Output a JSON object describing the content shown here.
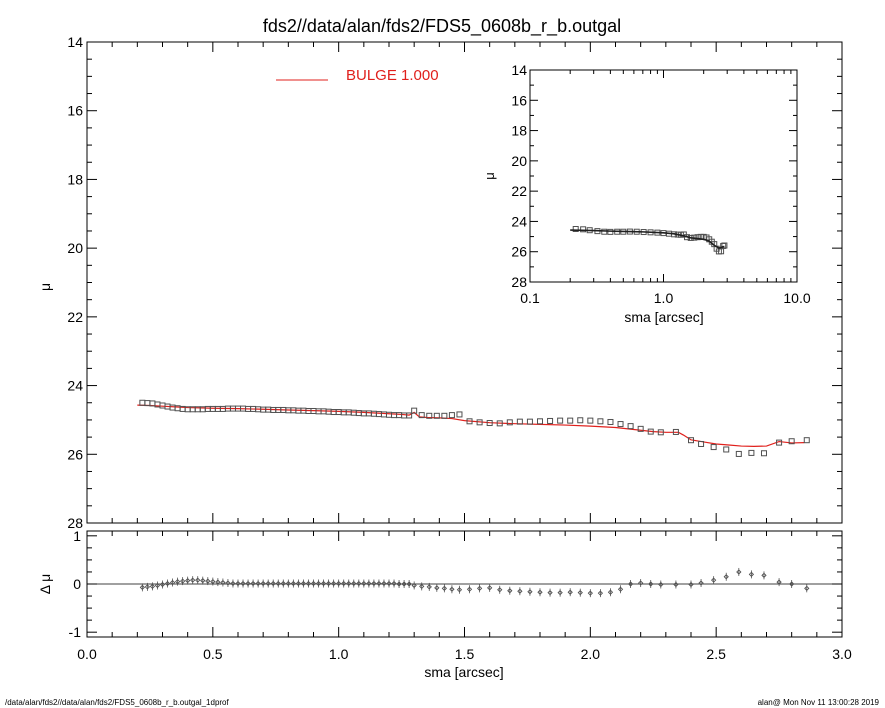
{
  "title": "fds2//data/alan/fds2/FDS5_0608b_r_b.outgal",
  "footer": {
    "left": "/data/alan/fds2//data/alan/fds2/FDS5_0608b_r_b.outgal_1dprof",
    "right": "alan@  Mon Nov 11 13:00:28 2019"
  },
  "colors": {
    "model": "#e0201c",
    "data": "#505050",
    "axes": "#000000"
  },
  "chart_data": [
    {
      "id": "main",
      "type": "scatter",
      "title": "fds2//data/alan/fds2/FDS5_0608b_r_b.outgal",
      "xlabel": "sma [arcsec]",
      "ylabel": "μ",
      "xlim": [
        0.0,
        3.0
      ],
      "ylim": [
        28,
        14
      ],
      "y_inverted": true,
      "xticks": [
        "0.0",
        "0.5",
        "1.0",
        "1.5",
        "2.0",
        "2.5",
        "3.0"
      ],
      "yticks": [
        "14",
        "16",
        "18",
        "20",
        "22",
        "24",
        "26",
        "28"
      ],
      "legend": {
        "label": "BULGE",
        "value": "1.000",
        "placement": "top"
      },
      "series": [
        {
          "kind": "points",
          "marker": "open-square",
          "x": [
            0.22,
            0.24,
            0.26,
            0.28,
            0.3,
            0.32,
            0.34,
            0.36,
            0.38,
            0.4,
            0.42,
            0.44,
            0.46,
            0.48,
            0.5,
            0.52,
            0.54,
            0.56,
            0.58,
            0.6,
            0.62,
            0.64,
            0.66,
            0.68,
            0.7,
            0.72,
            0.74,
            0.76,
            0.78,
            0.8,
            0.82,
            0.84,
            0.86,
            0.88,
            0.9,
            0.92,
            0.94,
            0.96,
            0.98,
            1.0,
            1.02,
            1.04,
            1.06,
            1.08,
            1.1,
            1.12,
            1.14,
            1.16,
            1.18,
            1.2,
            1.22,
            1.24,
            1.26,
            1.28,
            1.3,
            1.33,
            1.36,
            1.39,
            1.42,
            1.45,
            1.48,
            1.52,
            1.56,
            1.6,
            1.64,
            1.68,
            1.72,
            1.76,
            1.8,
            1.84,
            1.88,
            1.92,
            1.96,
            2.0,
            2.04,
            2.08,
            2.12,
            2.16,
            2.2,
            2.24,
            2.28,
            2.34,
            2.4,
            2.44,
            2.49,
            2.54,
            2.59,
            2.64,
            2.69,
            2.75,
            2.8,
            2.86
          ],
          "y": [
            24.5,
            24.51,
            24.52,
            24.55,
            24.58,
            24.61,
            24.64,
            24.66,
            24.68,
            24.69,
            24.69,
            24.69,
            24.69,
            24.68,
            24.68,
            24.68,
            24.68,
            24.67,
            24.67,
            24.67,
            24.67,
            24.68,
            24.68,
            24.69,
            24.7,
            24.7,
            24.71,
            24.71,
            24.71,
            24.72,
            24.72,
            24.73,
            24.73,
            24.74,
            24.74,
            24.75,
            24.75,
            24.76,
            24.77,
            24.77,
            24.78,
            24.78,
            24.79,
            24.8,
            24.81,
            24.81,
            24.82,
            24.83,
            24.84,
            24.85,
            24.86,
            24.86,
            24.87,
            24.87,
            24.73,
            24.86,
            24.88,
            24.88,
            24.88,
            24.86,
            24.84,
            25.04,
            25.07,
            25.09,
            25.1,
            25.07,
            25.05,
            25.05,
            25.04,
            25.03,
            25.02,
            25.02,
            25.01,
            25.02,
            25.04,
            25.06,
            25.12,
            25.18,
            25.26,
            25.34,
            25.36,
            25.35,
            25.59,
            25.7,
            25.79,
            25.86,
            25.99,
            25.96,
            25.97,
            25.66,
            25.62,
            25.59
          ]
        },
        {
          "kind": "line",
          "name": "BULGE",
          "x": [
            0.2,
            0.25,
            0.3,
            0.35,
            0.4,
            0.45,
            0.5,
            0.6,
            0.7,
            0.8,
            0.9,
            1.0,
            1.1,
            1.2,
            1.25,
            1.28,
            1.3,
            1.32,
            1.35,
            1.4,
            1.45,
            1.5,
            1.6,
            1.7,
            1.8,
            1.9,
            2.0,
            2.1,
            2.2,
            2.25,
            2.3,
            2.35,
            2.37,
            2.4,
            2.45,
            2.5,
            2.55,
            2.6,
            2.65,
            2.7,
            2.75,
            2.8,
            2.85
          ],
          "y": [
            24.57,
            24.58,
            24.6,
            24.62,
            24.64,
            24.65,
            24.66,
            24.67,
            24.69,
            24.71,
            24.73,
            24.75,
            24.78,
            24.82,
            24.84,
            24.86,
            24.78,
            24.91,
            24.93,
            24.94,
            24.96,
            25.02,
            25.08,
            25.11,
            25.13,
            25.15,
            25.18,
            25.22,
            25.3,
            25.34,
            25.36,
            25.36,
            25.44,
            25.58,
            25.64,
            25.7,
            25.73,
            25.76,
            25.77,
            25.76,
            25.63,
            25.67,
            25.66
          ]
        }
      ]
    },
    {
      "id": "residual",
      "type": "scatter",
      "xlabel": "sma [arcsec]",
      "ylabel": "Δ μ",
      "xlim": [
        0.0,
        3.0
      ],
      "ylim": [
        -1.1,
        1.1
      ],
      "yticks": [
        "1",
        "0",
        "-1"
      ],
      "zero_line": true,
      "series": [
        {
          "kind": "points",
          "marker": "diamond-errorbar",
          "x": [
            0.22,
            0.24,
            0.26,
            0.28,
            0.3,
            0.32,
            0.34,
            0.36,
            0.38,
            0.4,
            0.42,
            0.44,
            0.46,
            0.48,
            0.5,
            0.52,
            0.54,
            0.56,
            0.58,
            0.6,
            0.62,
            0.64,
            0.66,
            0.68,
            0.7,
            0.72,
            0.74,
            0.76,
            0.78,
            0.8,
            0.82,
            0.84,
            0.86,
            0.88,
            0.9,
            0.92,
            0.94,
            0.96,
            0.98,
            1.0,
            1.02,
            1.04,
            1.06,
            1.08,
            1.1,
            1.12,
            1.14,
            1.16,
            1.18,
            1.2,
            1.22,
            1.24,
            1.26,
            1.28,
            1.3,
            1.33,
            1.36,
            1.39,
            1.42,
            1.45,
            1.48,
            1.52,
            1.56,
            1.6,
            1.64,
            1.68,
            1.72,
            1.76,
            1.8,
            1.84,
            1.88,
            1.92,
            1.96,
            2.0,
            2.04,
            2.08,
            2.12,
            2.16,
            2.2,
            2.24,
            2.28,
            2.34,
            2.4,
            2.44,
            2.49,
            2.54,
            2.59,
            2.64,
            2.69,
            2.75,
            2.8,
            2.86
          ],
          "y": [
            -0.07,
            -0.06,
            -0.05,
            -0.03,
            -0.01,
            0.01,
            0.03,
            0.05,
            0.06,
            0.07,
            0.08,
            0.08,
            0.07,
            0.06,
            0.05,
            0.04,
            0.03,
            0.02,
            0.01,
            0.01,
            0.01,
            0.01,
            0.01,
            0.01,
            0.01,
            0.01,
            0.01,
            0.01,
            0.01,
            0.01,
            0.01,
            0.01,
            0.01,
            0.01,
            0.01,
            0.01,
            0.01,
            0.01,
            0.01,
            0.01,
            0.01,
            0.01,
            0.01,
            0.01,
            0.01,
            0.01,
            0.01,
            0.01,
            0.01,
            0.01,
            0.01,
            0.0,
            0.0,
            0.0,
            -0.03,
            -0.05,
            -0.06,
            -0.08,
            -0.09,
            -0.11,
            -0.12,
            -0.11,
            -0.09,
            -0.08,
            -0.12,
            -0.14,
            -0.15,
            -0.16,
            -0.17,
            -0.18,
            -0.18,
            -0.17,
            -0.18,
            -0.19,
            -0.19,
            -0.17,
            -0.11,
            0.0,
            0.02,
            0.0,
            -0.01,
            -0.01,
            -0.01,
            0.02,
            0.08,
            0.15,
            0.25,
            0.2,
            0.18,
            0.04,
            0.0,
            -0.09
          ]
        }
      ]
    },
    {
      "id": "inset",
      "type": "scatter",
      "xlabel": "sma [arcsec]",
      "ylabel": "μ",
      "xscale": "log",
      "xlim": [
        0.1,
        10.0
      ],
      "ylim": [
        28,
        14
      ],
      "y_inverted": true,
      "xticks": [
        "0.1",
        "1.0",
        "10.0"
      ],
      "yticks": [
        "14",
        "16",
        "18",
        "20",
        "22",
        "24",
        "26",
        "28"
      ],
      "series": [
        {
          "kind": "points",
          "marker": "open-square",
          "x": [
            0.22,
            0.25,
            0.28,
            0.32,
            0.36,
            0.4,
            0.45,
            0.5,
            0.56,
            0.63,
            0.71,
            0.8,
            0.9,
            1.0,
            1.1,
            1.2,
            1.28,
            1.35,
            1.42,
            1.5,
            1.6,
            1.7,
            1.8,
            1.9,
            2.0,
            2.1,
            2.2,
            2.3,
            2.4,
            2.5,
            2.6,
            2.7,
            2.8,
            2.86
          ],
          "y": [
            24.5,
            24.52,
            24.58,
            24.64,
            24.68,
            24.69,
            24.68,
            24.68,
            24.67,
            24.68,
            24.7,
            24.72,
            24.74,
            24.77,
            24.81,
            24.85,
            24.87,
            24.88,
            24.86,
            25.04,
            25.09,
            25.07,
            25.04,
            25.02,
            25.02,
            25.06,
            25.18,
            25.34,
            25.5,
            25.8,
            25.98,
            25.97,
            25.62,
            25.59
          ]
        },
        {
          "kind": "line",
          "name": "BULGE",
          "x": [
            0.2,
            0.3,
            0.4,
            0.5,
            0.7,
            1.0,
            1.2,
            1.4,
            1.6,
            1.8,
            2.0,
            2.2,
            2.4,
            2.6,
            2.8,
            2.86
          ],
          "y": [
            24.57,
            24.6,
            24.64,
            24.66,
            24.69,
            24.75,
            24.82,
            24.94,
            25.08,
            25.13,
            25.18,
            25.3,
            25.58,
            25.76,
            25.67,
            25.66
          ]
        }
      ]
    }
  ]
}
